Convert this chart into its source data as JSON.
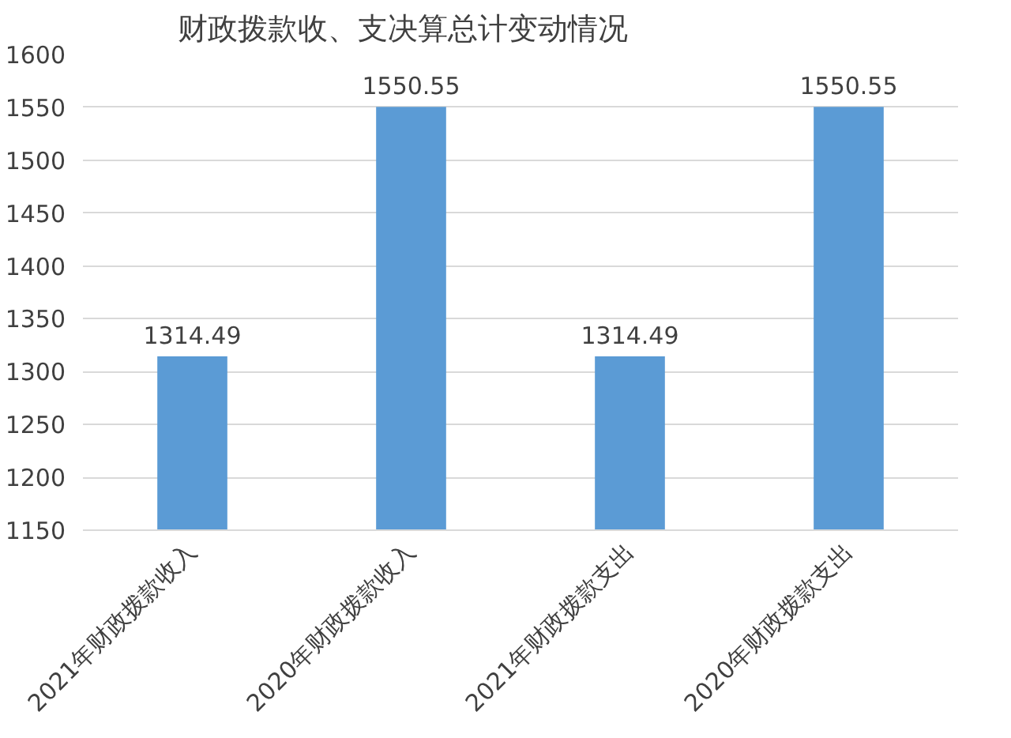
{
  "chart_data": {
    "type": "bar",
    "title": "财政拨款收、支决算总计变动情况",
    "categories": [
      "2021年财政拨款收入",
      "2020年财政拨款收入",
      "2021年财政拨款支出",
      "2020年财政拨款支出"
    ],
    "values": [
      1314.49,
      1550.55,
      1314.49,
      1550.55
    ],
    "color": "#5b9bd5",
    "ylim": [
      1150,
      1600
    ],
    "yticks": [
      1150,
      1200,
      1250,
      1300,
      1350,
      1400,
      1450,
      1500,
      1550,
      1600
    ],
    "grid": "y",
    "data_labels": true
  }
}
